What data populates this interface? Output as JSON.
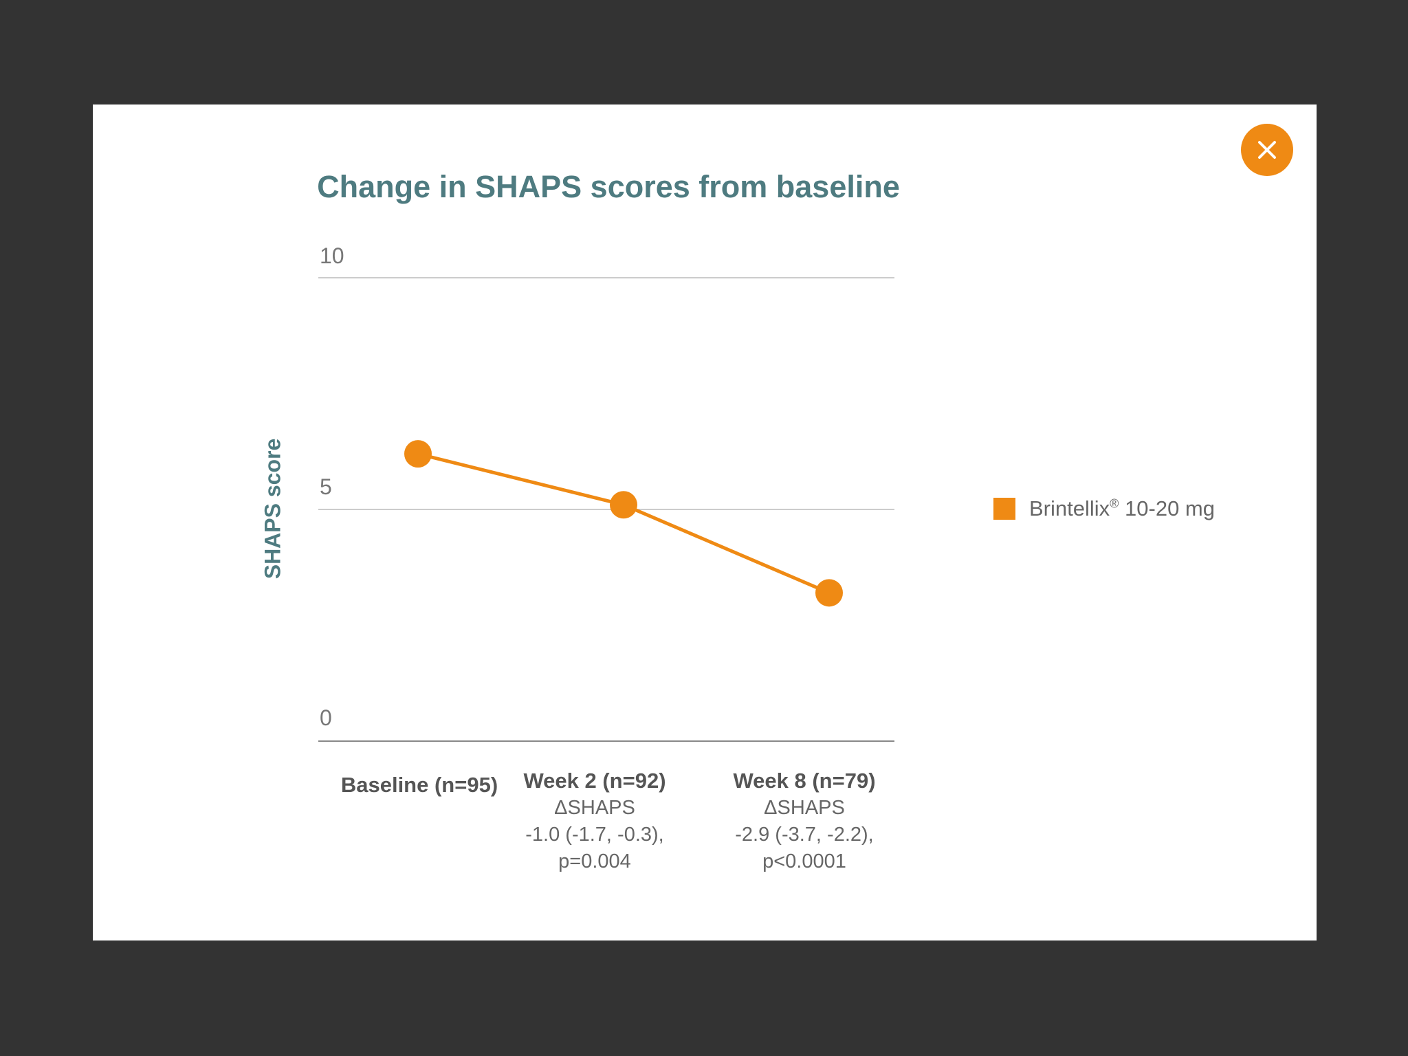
{
  "close_button": {
    "icon": "close-icon",
    "color": "#ef8a14"
  },
  "chart_data": {
    "type": "line",
    "title": "Change in SHAPS scores from baseline",
    "ylabel": "SHAPS score",
    "xlabel": "",
    "ylim": [
      0,
      10
    ],
    "yticks": [
      "0",
      "5",
      "10"
    ],
    "grid": true,
    "legend_position": "right",
    "categories": [
      {
        "label": "Baseline (n=95)",
        "notes": []
      },
      {
        "label": "Week 2 (n=92)",
        "notes": [
          "ΔSHAPS",
          "-1.0 (-1.7, -0.3),",
          "p=0.004"
        ]
      },
      {
        "label": "Week 8 (n=79)",
        "notes": [
          "ΔSHAPS",
          "-2.9 (-3.7, -2.2),",
          "p<0.0001"
        ]
      }
    ],
    "series": [
      {
        "name": "Brintellix",
        "name_sup": "®",
        "name_suffix": " 10-20 mg",
        "values": [
          6.2,
          5.1,
          3.2
        ],
        "color": "#ef8a14"
      }
    ],
    "colors": {
      "title": "#4e7b80",
      "grid": "#bbbbbb",
      "axis": "#888888"
    }
  }
}
